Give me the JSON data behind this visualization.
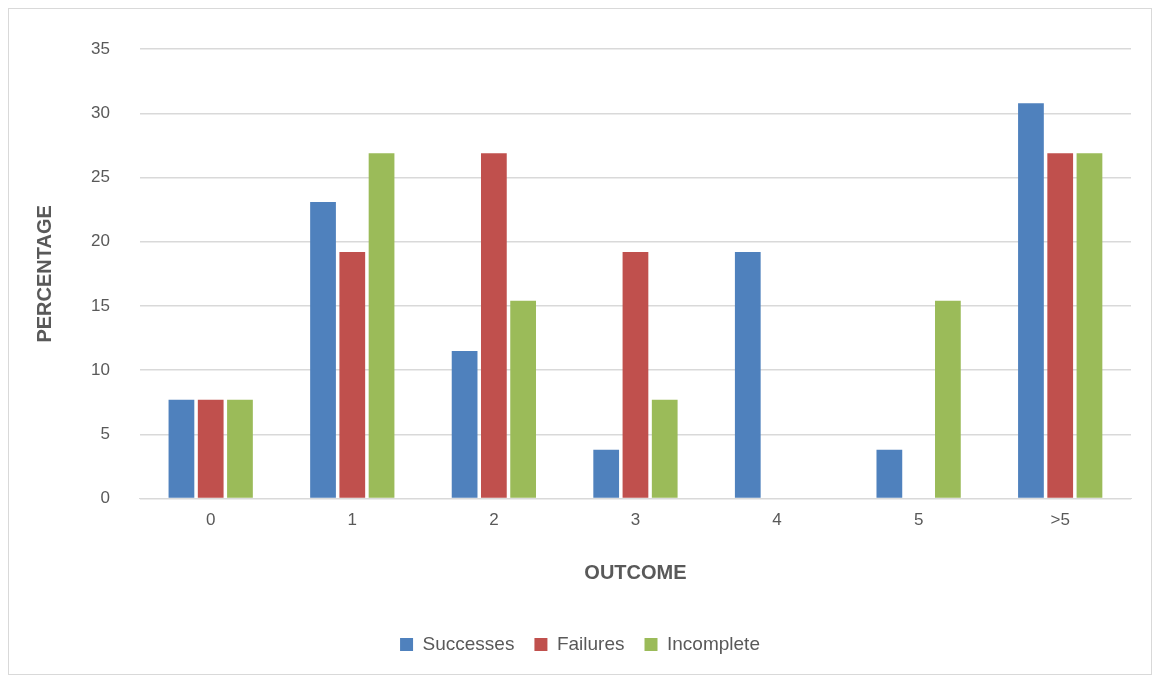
{
  "chart_data": {
    "type": "bar",
    "xlabel": "OUTCOME",
    "ylabel": "PERCENTAGE",
    "categories": [
      "0",
      "1",
      "2",
      "3",
      "4",
      "5",
      ">5"
    ],
    "series": [
      {
        "name": "Successes",
        "color": "#4f81bd",
        "values": [
          7.7,
          23.1,
          11.5,
          3.8,
          19.2,
          3.8,
          30.8
        ]
      },
      {
        "name": "Failures",
        "color": "#c0504d",
        "values": [
          7.7,
          19.2,
          26.9,
          19.2,
          0,
          0,
          26.9
        ]
      },
      {
        "name": "Incomplete",
        "color": "#9bbb59",
        "values": [
          7.7,
          26.9,
          15.4,
          7.7,
          0,
          15.4,
          26.9
        ]
      }
    ],
    "ylim": [
      0,
      35
    ],
    "yticks": [
      0,
      5,
      10,
      15,
      20,
      25,
      30,
      35
    ],
    "grid": "y",
    "legend": "bottom"
  }
}
